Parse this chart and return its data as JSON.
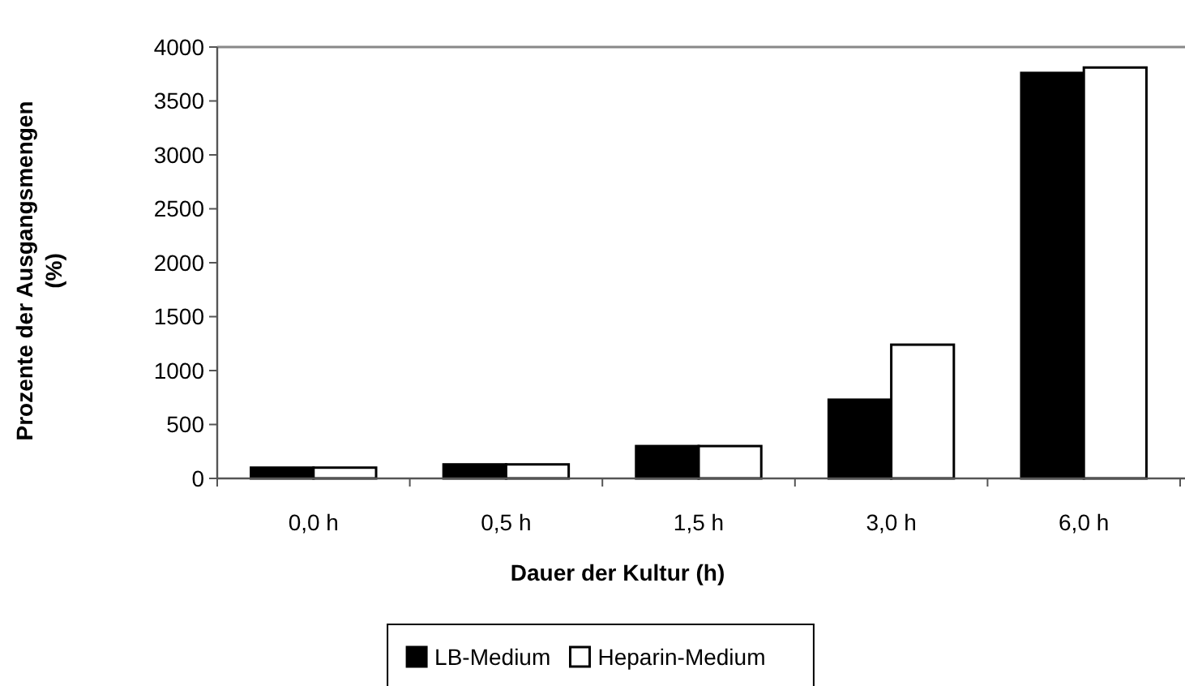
{
  "chart_data": {
    "type": "bar",
    "categories": [
      "0,0 h",
      "0,5 h",
      "1,5 h",
      "3,0 h",
      "6,0 h"
    ],
    "series": [
      {
        "name": "LB-Medium",
        "color": "#000000",
        "values": [
          100,
          130,
          300,
          730,
          3760
        ]
      },
      {
        "name": "Heparin-Medium",
        "color": "#ffffff",
        "values": [
          100,
          130,
          300,
          1240,
          3810
        ]
      }
    ],
    "xlabel": "Dauer der Kultur (h)",
    "ylabel": "Prozente der Ausgangsmengen (%)",
    "ylim": [
      0,
      4000
    ],
    "yticks": [
      0,
      500,
      1000,
      1500,
      2000,
      2500,
      3000,
      3500,
      4000
    ],
    "grid": false,
    "legend": "bottom"
  }
}
